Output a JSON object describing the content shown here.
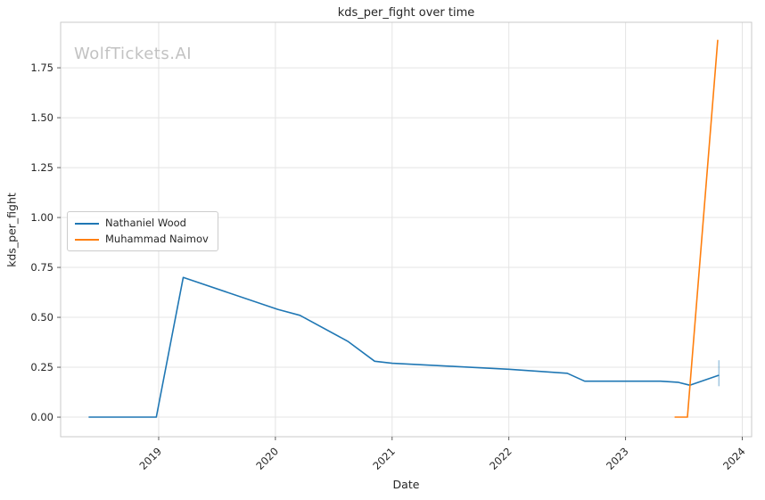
{
  "title": "kds_per_fight over time",
  "watermark": "WolfTickets.AI",
  "axes": {
    "xlabel": "Date",
    "ylabel": "kds_per_fight"
  },
  "chart_data": {
    "type": "line",
    "title": "kds_per_fight over time",
    "xlabel": "Date",
    "ylabel": "kds_per_fight",
    "grid": true,
    "legend_position": "center-left",
    "xlim": [
      2018.16,
      2024.08
    ],
    "ylim": [
      -0.098,
      1.978
    ],
    "x_ticks": [
      2019,
      2020,
      2021,
      2022,
      2023,
      2024
    ],
    "x_tick_labels": [
      "2019",
      "2020",
      "2021",
      "2022",
      "2023",
      "2024"
    ],
    "y_ticks": [
      0.0,
      0.25,
      0.5,
      0.75,
      1.0,
      1.25,
      1.5,
      1.75
    ],
    "y_tick_labels": [
      "0.00",
      "0.25",
      "0.50",
      "0.75",
      "1.00",
      "1.25",
      "1.50",
      "1.75"
    ],
    "series": [
      {
        "name": "Nathaniel Wood",
        "color": "#1f77b4",
        "points": [
          [
            2018.4,
            0.0
          ],
          [
            2018.98,
            0.0
          ],
          [
            2019.21,
            0.7
          ],
          [
            2020.02,
            0.54
          ],
          [
            2020.21,
            0.51
          ],
          [
            2020.62,
            0.38
          ],
          [
            2020.85,
            0.28
          ],
          [
            2021.0,
            0.27
          ],
          [
            2021.5,
            0.255
          ],
          [
            2022.0,
            0.24
          ],
          [
            2022.5,
            0.22
          ],
          [
            2022.65,
            0.18
          ],
          [
            2023.3,
            0.18
          ],
          [
            2023.45,
            0.175
          ],
          [
            2023.55,
            0.16
          ],
          [
            2023.8,
            0.21
          ]
        ]
      },
      {
        "name": "Muhammad Naimov",
        "color": "#ff7f0e",
        "points": [
          [
            2023.42,
            0.0
          ],
          [
            2023.53,
            0.0
          ],
          [
            2023.79,
            1.89
          ]
        ]
      }
    ],
    "error_bars": [
      {
        "series": "Nathaniel Wood",
        "x": 2023.8,
        "y_low": 0.155,
        "y_high": 0.285
      }
    ]
  }
}
